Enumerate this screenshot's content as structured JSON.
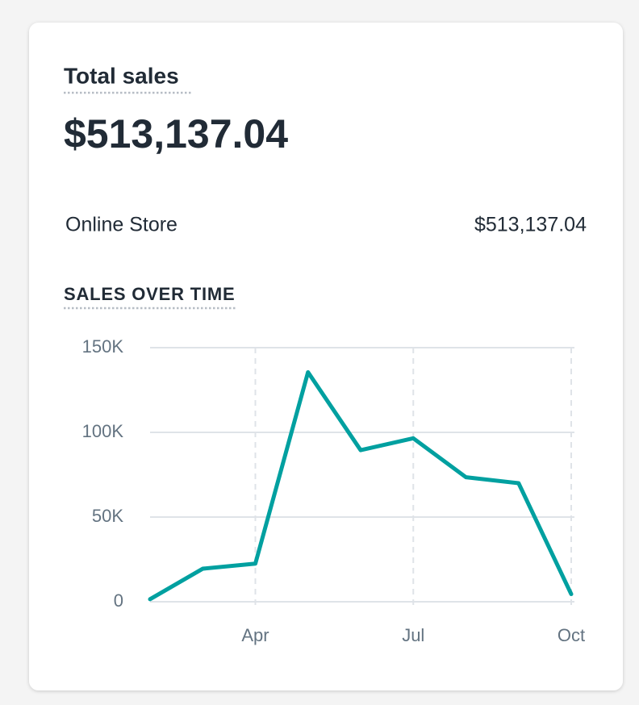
{
  "header": {
    "title": "Total sales",
    "total": "$513,137.04"
  },
  "breakdown": [
    {
      "channel": "Online Store",
      "amount": "$513,137.04"
    }
  ],
  "chart_data": {
    "type": "line",
    "title": "SALES OVER TIME",
    "categories": [
      null,
      null,
      "Apr",
      null,
      null,
      "Jul",
      null,
      null,
      "Oct"
    ],
    "series": [
      {
        "name": "Total sales",
        "color": "#00a0a0",
        "values": [
          1500,
          19500,
          22500,
          135500,
          89500,
          96500,
          73500,
          70000,
          4500
        ]
      }
    ],
    "ylim": [
      0,
      150000
    ],
    "yticks": [
      0,
      {
        "value": 50000,
        "label": "50K"
      },
      {
        "value": 100000,
        "label": "100K"
      },
      {
        "value": 150000,
        "label": "150K"
      }
    ],
    "grid": true
  }
}
